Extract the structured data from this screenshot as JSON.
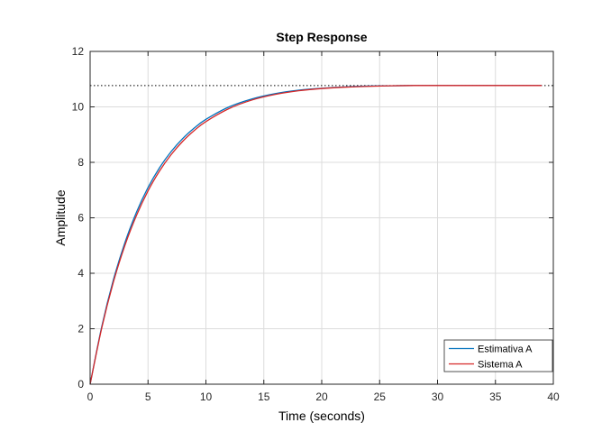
{
  "chart_data": {
    "type": "line",
    "title": "Step Response",
    "xlabel": "Time (seconds)",
    "ylabel": "Amplitude",
    "xlim": [
      0,
      40
    ],
    "ylim": [
      0,
      12
    ],
    "xticks": [
      0,
      5,
      10,
      15,
      20,
      25,
      30,
      35,
      40
    ],
    "yticks": [
      0,
      2,
      4,
      6,
      8,
      10,
      12
    ],
    "grid": true,
    "legend_position": "bottom-right",
    "steady_state_reference": {
      "value": 10.77,
      "style": "dotted",
      "color": "#000000"
    },
    "x": [
      0,
      1,
      2,
      3,
      4,
      5,
      6,
      7,
      8,
      9,
      10,
      12,
      14,
      16,
      18,
      20,
      22,
      24,
      26,
      28,
      30,
      35,
      39
    ],
    "series": [
      {
        "name": "Estimativa A",
        "color": "#0072BD",
        "values": [
          0,
          2.07,
          3.75,
          5.1,
          6.2,
          7.09,
          7.81,
          8.39,
          8.86,
          9.24,
          9.55,
          10.0,
          10.29,
          10.48,
          10.6,
          10.67,
          10.72,
          10.75,
          10.76,
          10.77,
          10.77,
          10.77,
          10.77
        ]
      },
      {
        "name": "Sistema A",
        "color": "#D62728",
        "values": [
          0,
          2.02,
          3.67,
          5.0,
          6.08,
          6.97,
          7.69,
          8.28,
          8.76,
          9.15,
          9.47,
          9.94,
          10.25,
          10.45,
          10.58,
          10.66,
          10.71,
          10.74,
          10.76,
          10.77,
          10.77,
          10.77,
          10.77
        ]
      }
    ]
  }
}
